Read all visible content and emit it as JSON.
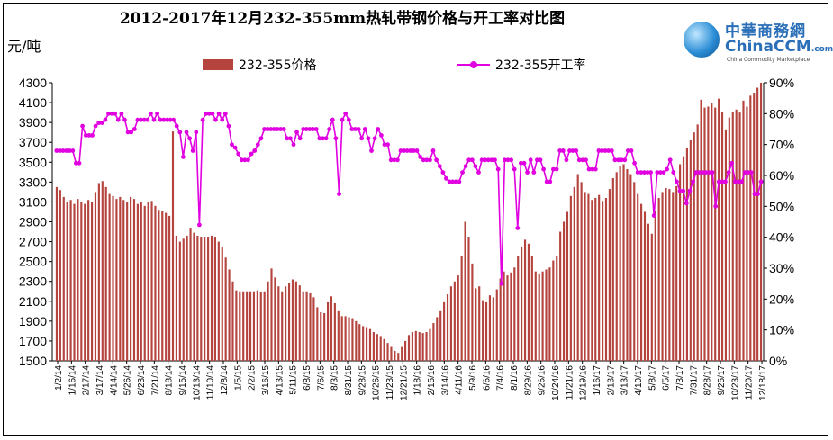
{
  "title": "2012-2017年12月232-355mm热轧带钢价格与开工率对比图",
  "unit_label": "元/吨",
  "logo": {
    "cn": "中華商務網",
    "en": "ChinaCCM",
    "en_suffix": ".com",
    "sub": "China Commodity Marketplace"
  },
  "colors": {
    "bar": "#b5443f",
    "line": "#e000e0"
  },
  "chart_data": {
    "type": "bar",
    "grid": false,
    "legend_position": "top",
    "left_axis": {
      "ylim": [
        1500,
        4300
      ],
      "ticks": [
        1500,
        1700,
        1900,
        2100,
        2300,
        2500,
        2700,
        2900,
        3100,
        3300,
        3500,
        3700,
        3900,
        4100,
        4300
      ]
    },
    "right_axis": {
      "ylim": [
        0,
        90
      ],
      "ticks": [
        "0%",
        "10%",
        "20%",
        "30%",
        "40%",
        "50%",
        "60%",
        "70%",
        "80%",
        "90%"
      ]
    },
    "x_tick_labels": [
      "1/2/14",
      "1/16/14",
      "2/17/14",
      "3/17/14",
      "4/14/14",
      "5/26/14",
      "6/23/14",
      "7/21/14",
      "8/18/14",
      "9/15/14",
      "10/13/14",
      "11/10/14",
      "12/8/14",
      "1/5/15",
      "2/2/15",
      "3/16/15",
      "4/13/15",
      "5/11/15",
      "6/8/15",
      "7/6/15",
      "8/3/15",
      "8/31/15",
      "9/28/15",
      "10/26/15",
      "11/23/15",
      "12/21/15",
      "1/18/16",
      "2/15/16",
      "3/14/16",
      "4/11/16",
      "5/9/16",
      "6/6/16",
      "7/4/16",
      "8/1/16",
      "8/29/16",
      "9/26/16",
      "10/24/16",
      "11/21/16",
      "12/19/16",
      "1/16/17",
      "2/13/17",
      "3/13/17",
      "4/10/17",
      "5/8/17",
      "6/5/17",
      "7/3/17",
      "7/31/17",
      "8/28/17",
      "9/25/17",
      "10/23/17",
      "11/20/17",
      "12/18/17"
    ],
    "series": [
      {
        "name": "232-355价格",
        "axis": "left",
        "values": [
          3250,
          3220,
          3150,
          3100,
          3120,
          3080,
          3130,
          3100,
          3080,
          3120,
          3100,
          3200,
          3290,
          3310,
          3250,
          3180,
          3160,
          3130,
          3150,
          3120,
          3100,
          3150,
          3130,
          3080,
          3100,
          3060,
          3100,
          3110,
          3060,
          3020,
          3010,
          2990,
          2960,
          3810,
          2760,
          2700,
          2730,
          2760,
          2840,
          2790,
          2760,
          2750,
          2750,
          2750,
          2760,
          2750,
          2700,
          2650,
          2540,
          2420,
          2300,
          2210,
          2200,
          2200,
          2200,
          2200,
          2200,
          2210,
          2190,
          2200,
          2300,
          2430,
          2340,
          2250,
          2200,
          2250,
          2280,
          2320,
          2300,
          2260,
          2200,
          2200,
          2180,
          2140,
          2040,
          1990,
          1980,
          2090,
          2150,
          2080,
          2000,
          1950,
          1950,
          1940,
          1930,
          1900,
          1870,
          1850,
          1840,
          1820,
          1790,
          1770,
          1750,
          1720,
          1680,
          1640,
          1600,
          1580,
          1640,
          1700,
          1760,
          1790,
          1800,
          1790,
          1780,
          1790,
          1820,
          1880,
          1940,
          2000,
          2090,
          2170,
          2250,
          2300,
          2360,
          2560,
          2900,
          2750,
          2480,
          2230,
          2250,
          2110,
          2090,
          2160,
          2140,
          2220,
          2330,
          2400,
          2360,
          2390,
          2440,
          2560,
          2650,
          2720,
          2680,
          2560,
          2400,
          2380,
          2400,
          2420,
          2440,
          2510,
          2560,
          2800,
          2900,
          3000,
          3160,
          3250,
          3380,
          3300,
          3200,
          3180,
          3120,
          3140,
          3170,
          3110,
          3140,
          3230,
          3340,
          3400,
          3460,
          3480,
          3430,
          3380,
          3300,
          3180,
          3080,
          3000,
          2880,
          2780,
          3010,
          3140,
          3200,
          3240,
          3230,
          3200,
          3260,
          3480,
          3560,
          3640,
          3720,
          3800,
          3880,
          4130,
          4050,
          4060,
          4100,
          4050,
          4140,
          4010,
          3830,
          3950,
          4010,
          4030,
          4000,
          4120,
          4060,
          4170,
          4200,
          4250,
          4300
        ]
      },
      {
        "name": "232-355开工率",
        "axis": "right",
        "values": [
          68,
          68,
          68,
          68,
          68,
          68,
          64,
          64,
          76,
          73,
          73,
          73,
          76,
          77,
          77,
          78,
          80,
          80,
          80,
          78,
          80,
          78,
          74,
          74,
          75,
          78,
          78,
          78,
          78,
          80,
          78,
          80,
          78,
          78,
          78,
          78,
          78,
          76,
          74,
          66,
          74,
          72,
          68,
          74,
          44,
          78,
          80,
          80,
          80,
          78,
          80,
          78,
          80,
          76,
          70,
          69,
          67,
          65,
          65,
          65,
          67,
          68,
          70,
          72,
          75,
          75,
          75,
          75,
          75,
          75,
          75,
          72,
          72,
          70,
          74,
          72,
          75,
          75,
          75,
          75,
          75,
          72,
          72,
          72,
          75,
          78,
          72,
          54,
          78,
          80,
          78,
          75,
          75,
          75,
          72,
          75,
          72,
          68,
          72,
          75,
          73,
          70,
          70,
          65,
          65,
          65,
          68,
          68,
          68,
          68,
          68,
          68,
          66,
          65,
          65,
          65,
          68,
          65,
          63,
          61,
          59,
          58,
          58,
          58,
          58,
          61,
          63,
          65,
          65,
          63,
          61,
          65,
          65,
          65,
          65,
          65,
          62,
          25,
          65,
          65,
          65,
          62,
          43,
          64,
          64,
          61,
          65,
          61,
          65,
          65,
          62,
          58,
          58,
          62,
          62,
          68,
          68,
          65,
          68,
          68,
          68,
          65,
          65,
          65,
          62,
          62,
          62,
          68,
          68,
          68,
          68,
          68,
          65,
          65,
          65,
          65,
          68,
          68,
          64,
          61,
          61,
          61,
          61,
          61,
          47,
          61,
          61,
          61,
          62,
          65,
          61,
          58,
          55,
          55,
          51,
          55,
          58,
          61,
          61,
          61,
          61,
          61,
          61,
          50,
          58,
          58,
          58,
          61,
          64,
          58,
          58,
          58,
          61,
          61,
          61,
          54,
          54,
          58
        ]
      }
    ]
  }
}
